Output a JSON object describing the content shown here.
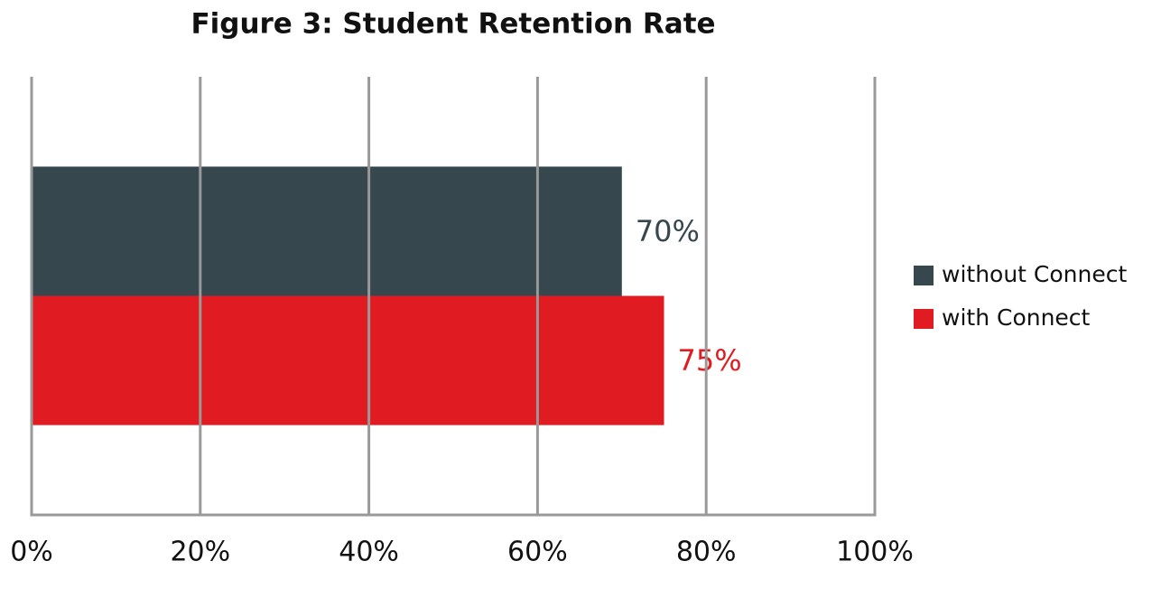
{
  "chart_data": {
    "type": "hbar",
    "title": "Figure 3: Student Retention Rate",
    "categories": [
      null
    ],
    "series": [
      {
        "name": "without Connect",
        "color": "#36474d",
        "values": [
          70
        ],
        "value_labels": [
          "70%"
        ]
      },
      {
        "name": "with Connect",
        "color": "#e01c22",
        "values": [
          75
        ],
        "value_labels": [
          "75%"
        ]
      }
    ],
    "xlim": [
      0,
      100
    ],
    "xticks": [
      {
        "value": 0,
        "label": "0%"
      },
      {
        "value": 20,
        "label": "20%"
      },
      {
        "value": 40,
        "label": "40%"
      },
      {
        "value": 60,
        "label": "60%"
      },
      {
        "value": 80,
        "label": "80%"
      },
      {
        "value": 100,
        "label": "100%"
      }
    ],
    "grid": true,
    "legend": "right"
  }
}
